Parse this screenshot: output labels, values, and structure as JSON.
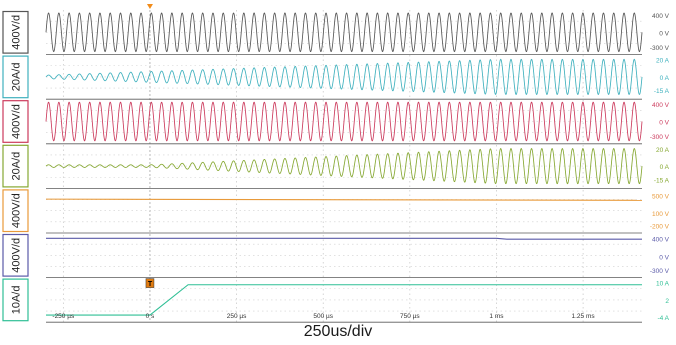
{
  "chart_data": {
    "type": "line",
    "title": "",
    "time_axis": {
      "xlim_us": [
        -300,
        1420
      ],
      "ticks": [
        {
          "value": -250,
          "label": "-250 µs"
        },
        {
          "value": 0,
          "label": "0 s"
        },
        {
          "value": 250,
          "label": "250 µs"
        },
        {
          "value": 500,
          "label": "500 µs"
        },
        {
          "value": 750,
          "label": "750 µs"
        },
        {
          "value": 1000,
          "label": "1 ms"
        },
        {
          "value": 1250,
          "label": "1.25 ms"
        }
      ],
      "trigger_time_us": 0,
      "grid": true
    },
    "channels": [
      {
        "scale": "400V/d",
        "color": "#555555",
        "kind": "sine",
        "cycles": 58,
        "amp_start": 400,
        "amp_end": 400,
        "ramp_start_us": -300,
        "ramp_end_us": 1420,
        "ylim": [
          -400,
          400
        ],
        "labels": [
          {
            "value": 400,
            "text": "400 V"
          },
          {
            "value": 0,
            "text": "0 V"
          },
          {
            "value": -300,
            "text": "-300 V"
          }
        ]
      },
      {
        "scale": "20A/d",
        "color": "#3fb1be",
        "kind": "sine",
        "cycles": 58,
        "amp_start": 2,
        "amp_end": 20,
        "ramp_start_us": -300,
        "ramp_end_us": 1000,
        "ylim": [
          -22,
          22
        ],
        "labels": [
          {
            "value": 20,
            "text": "20 A"
          },
          {
            "value": 0,
            "text": "0 A"
          },
          {
            "value": -15,
            "text": "-15 A"
          }
        ]
      },
      {
        "scale": "400V/d",
        "color": "#cc3a5c",
        "kind": "sine",
        "cycles": 58,
        "amp_start": 400,
        "amp_end": 400,
        "ramp_start_us": -300,
        "ramp_end_us": 1420,
        "ylim": [
          -400,
          400
        ],
        "labels": [
          {
            "value": 400,
            "text": "400 V"
          },
          {
            "value": 0,
            "text": "0 V"
          },
          {
            "value": -300,
            "text": "-300 V"
          }
        ]
      },
      {
        "scale": "20A/d",
        "color": "#86a832",
        "kind": "sine",
        "cycles": 58,
        "amp_start": 1.5,
        "amp_end": 20,
        "ramp_start_us": 0,
        "ramp_end_us": 1000,
        "ylim": [
          -22,
          22
        ],
        "labels": [
          {
            "value": 20,
            "text": "20 A"
          },
          {
            "value": 0,
            "text": "0 A"
          },
          {
            "value": -15,
            "text": "-15 A"
          }
        ]
      },
      {
        "scale": "400V/d",
        "color": "#e89a3a",
        "kind": "level",
        "points": [
          [
            -300,
            420
          ],
          [
            1420,
            392
          ]
        ],
        "ylim": [
          -300,
          600
        ],
        "labels": [
          {
            "value": 500,
            "text": "500 V"
          },
          {
            "value": 100,
            "text": "100 V"
          },
          {
            "value": -200,
            "text": "-200 V"
          }
        ]
      },
      {
        "scale": "400V/d",
        "color": "#5a5aa8",
        "kind": "level",
        "points": [
          [
            -300,
            400
          ],
          [
            1000,
            400
          ],
          [
            1030,
            380
          ],
          [
            1420,
            380
          ]
        ],
        "ylim": [
          -400,
          450
        ],
        "labels": [
          {
            "value": 400,
            "text": "400 V"
          },
          {
            "value": 0,
            "text": "0 V"
          },
          {
            "value": -300,
            "text": "-300 V"
          }
        ]
      },
      {
        "scale": "10A/d",
        "color": "#2fbf95",
        "kind": "level",
        "points": [
          [
            -300,
            -2.5
          ],
          [
            0,
            -2.5
          ],
          [
            110,
            8.5
          ],
          [
            1420,
            8.5
          ]
        ],
        "ylim": [
          -4,
          10
        ],
        "labels": [
          {
            "value": 10,
            "text": "10 A"
          },
          {
            "value": 3,
            "text": "2"
          },
          {
            "value": -4,
            "text": "-4 A"
          }
        ]
      }
    ],
    "trigger_marker": "T",
    "caption": "250us/div"
  }
}
